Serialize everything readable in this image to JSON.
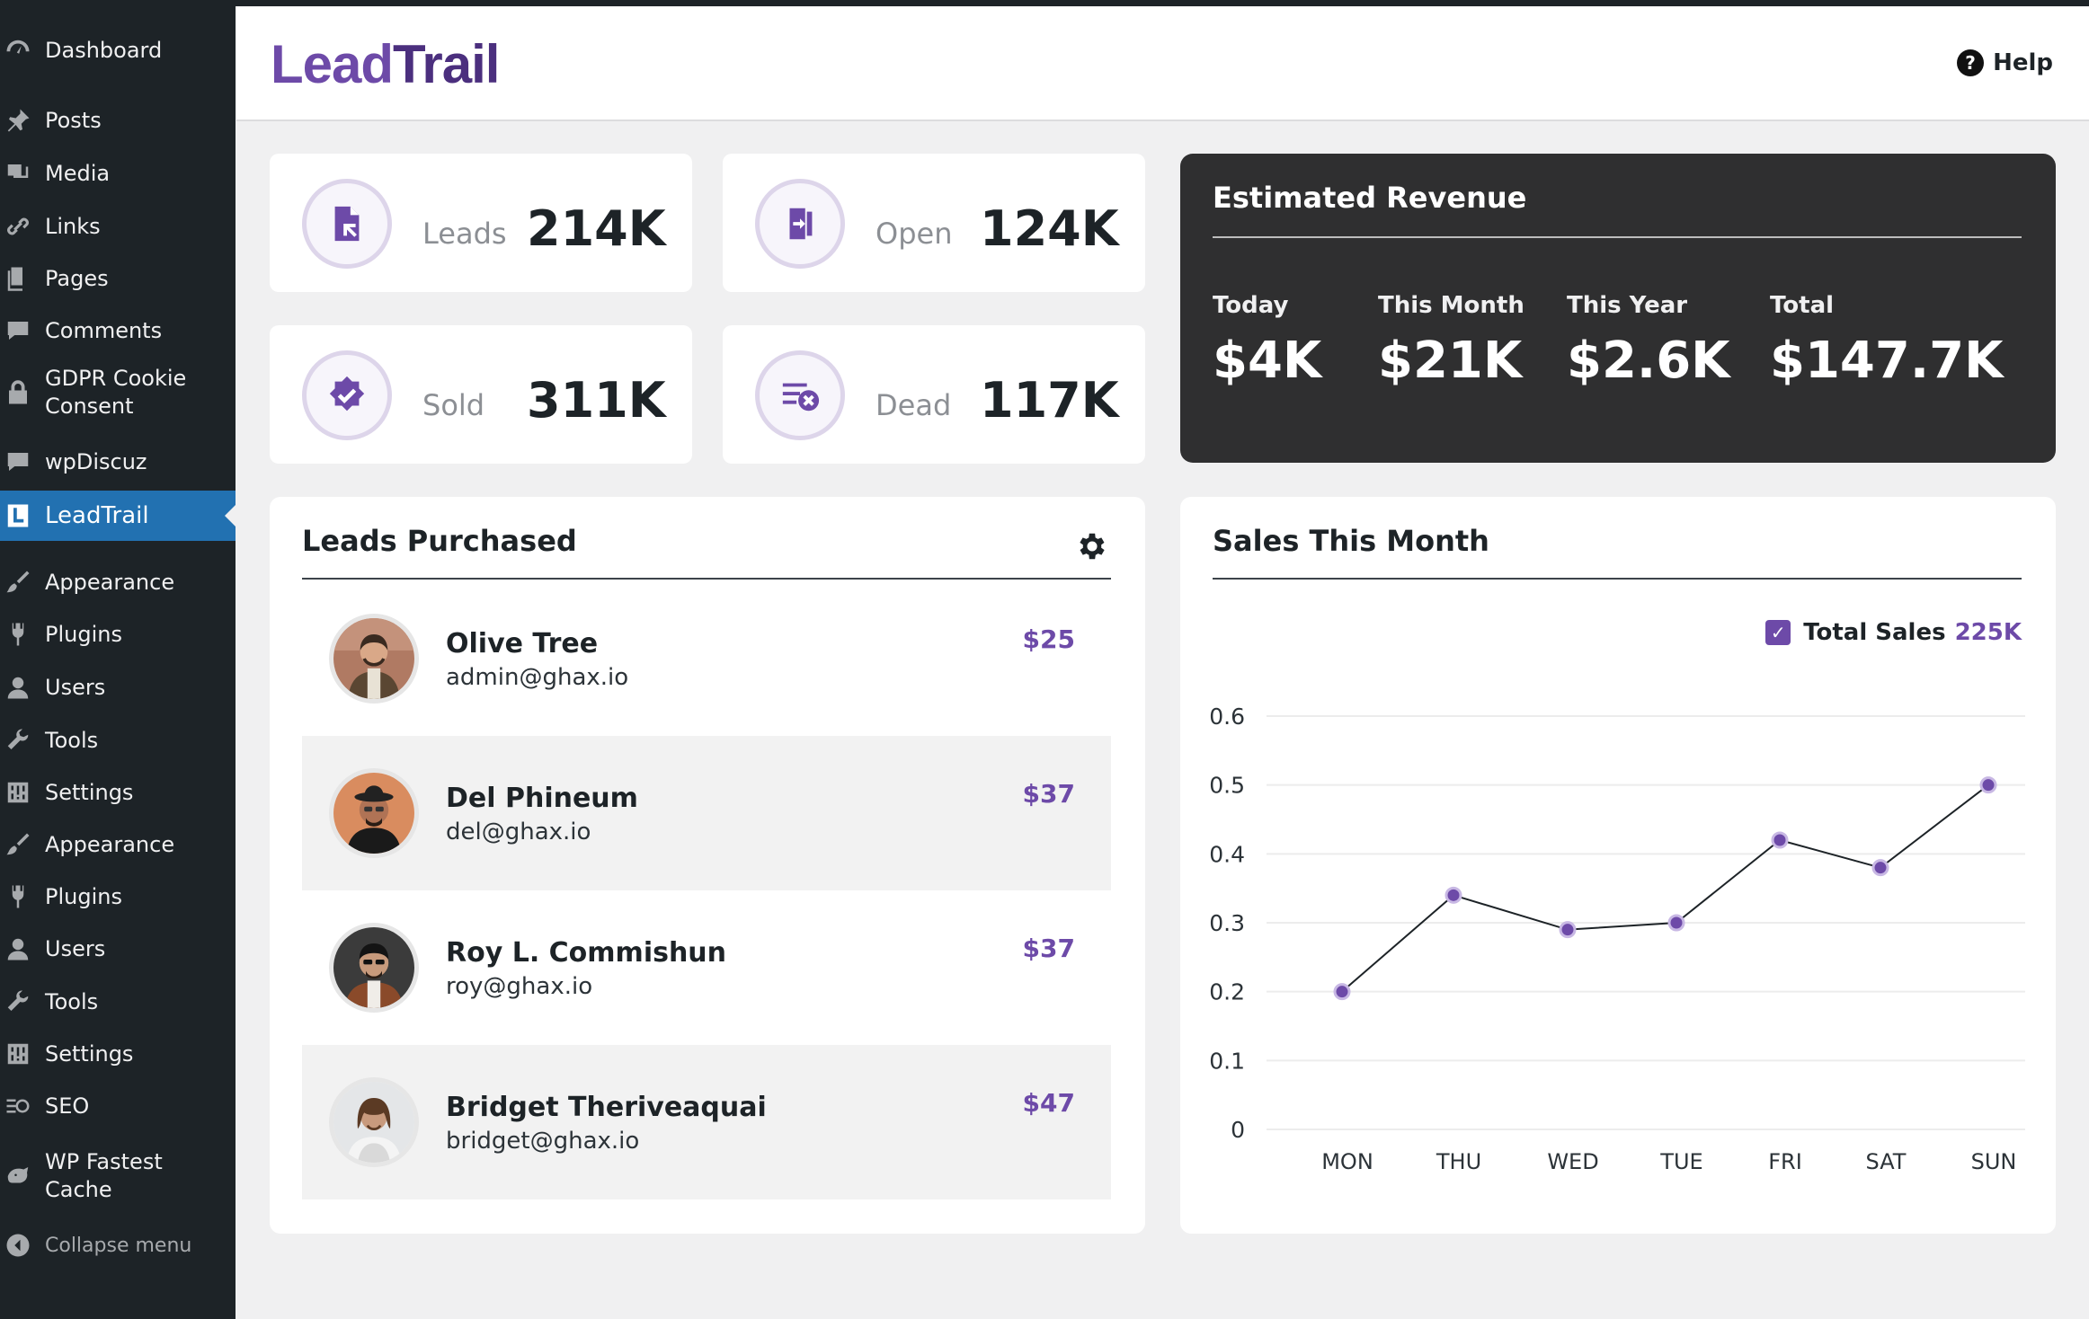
{
  "sidebar": {
    "items": [
      {
        "label": "Dashboard",
        "icon": "dashboard-icon"
      },
      {
        "label": "Posts",
        "icon": "pin-icon"
      },
      {
        "label": "Media",
        "icon": "media-icon"
      },
      {
        "label": "Links",
        "icon": "link-icon"
      },
      {
        "label": "Pages",
        "icon": "pages-icon"
      },
      {
        "label": "Comments",
        "icon": "comment-icon"
      },
      {
        "label": "GDPR Cookie\nConsent",
        "icon": "lock-icon"
      },
      {
        "label": "wpDiscuz",
        "icon": "comment-icon"
      },
      {
        "label": "LeadTrail",
        "icon": "leadtrail-icon"
      },
      {
        "label": "Appearance",
        "icon": "brush-icon"
      },
      {
        "label": "Plugins",
        "icon": "plugin-icon"
      },
      {
        "label": "Users",
        "icon": "user-icon"
      },
      {
        "label": "Tools",
        "icon": "wrench-icon"
      },
      {
        "label": "Settings",
        "icon": "settings-icon"
      },
      {
        "label": "Appearance",
        "icon": "brush-icon"
      },
      {
        "label": "Plugins",
        "icon": "plugin-icon"
      },
      {
        "label": "Users",
        "icon": "user-icon"
      },
      {
        "label": "Tools",
        "icon": "wrench-icon"
      },
      {
        "label": "Settings",
        "icon": "settings-icon"
      },
      {
        "label": "SEO",
        "icon": "seo-icon"
      },
      {
        "label": "WP Fastest\nCache",
        "icon": "cheetah-icon"
      },
      {
        "label": "Collapse menu",
        "icon": "collapse-icon"
      }
    ]
  },
  "header": {
    "logo": "LeadTrail",
    "help_label": "Help"
  },
  "stats": [
    {
      "label": "Leads",
      "value": "214K"
    },
    {
      "label": "Open",
      "value": "124K"
    },
    {
      "label": "Sold",
      "value": "311K"
    },
    {
      "label": "Dead",
      "value": "117K"
    }
  ],
  "revenue": {
    "title": "Estimated Revenue",
    "columns": [
      {
        "label": "Today",
        "value": "$4K"
      },
      {
        "label": "This Month",
        "value": "$21K"
      },
      {
        "label": "This Year",
        "value": "$2.6K"
      },
      {
        "label": "Total",
        "value": "$147.7K"
      }
    ]
  },
  "leads_panel": {
    "title": "Leads Purchased",
    "leads": [
      {
        "name": "Olive Tree",
        "email": "admin@ghax.io",
        "price": "$25"
      },
      {
        "name": "Del Phineum",
        "email": "del@ghax.io",
        "price": "$37"
      },
      {
        "name": "Roy L. Commishun",
        "email": "roy@ghax.io",
        "price": "$37"
      },
      {
        "name": "Bridget Theriveaquai",
        "email": "bridget@ghax.io",
        "price": "$47"
      }
    ]
  },
  "sales_panel": {
    "title": "Sales This Month",
    "legend_label": "Total Sales",
    "legend_value": "225K"
  },
  "colors": {
    "accent": "#6d4aa8",
    "sidebar_bg": "#1d2327",
    "active_bg": "#2271b1",
    "revenue_bg": "#2f2f30"
  },
  "chart_data": {
    "type": "line",
    "title": "Sales This Month",
    "categories": [
      "MON",
      "THU",
      "WED",
      "TUE",
      "FRI",
      "SAT",
      "SUN"
    ],
    "series": [
      {
        "name": "Total Sales",
        "values": [
          0.2,
          0.34,
          0.29,
          0.3,
          0.42,
          0.38,
          0.5
        ]
      }
    ],
    "yticks": [
      "0",
      "0.1",
      "0.2",
      "0.3",
      "0.4",
      "0.5",
      "0.6"
    ],
    "ylim": [
      0,
      0.6
    ],
    "xlabel": "",
    "ylabel": "",
    "grid": true,
    "legend": "top-right"
  }
}
